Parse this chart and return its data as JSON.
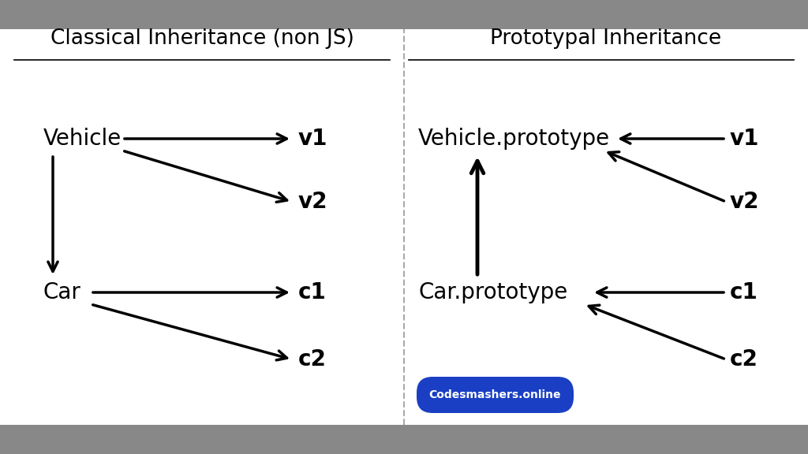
{
  "bg_color": "#888888",
  "panel_bg": "#ffffff",
  "title_left": "Classical Inheritance (non JS)",
  "title_right": "Prototypal Inheritance",
  "title_fontsize": 19,
  "label_fontsize": 20,
  "footer_text": "Codesmashers.online",
  "footer_bg": "#1a3fc4",
  "footer_text_color": "#ffffff",
  "footer_fontsize": 10,
  "arrow_lw": 2.5,
  "arrow_color": "#000000",
  "arrowhead_size": 22,
  "top_bar_height": 0.065,
  "bot_bar_height": 0.065
}
